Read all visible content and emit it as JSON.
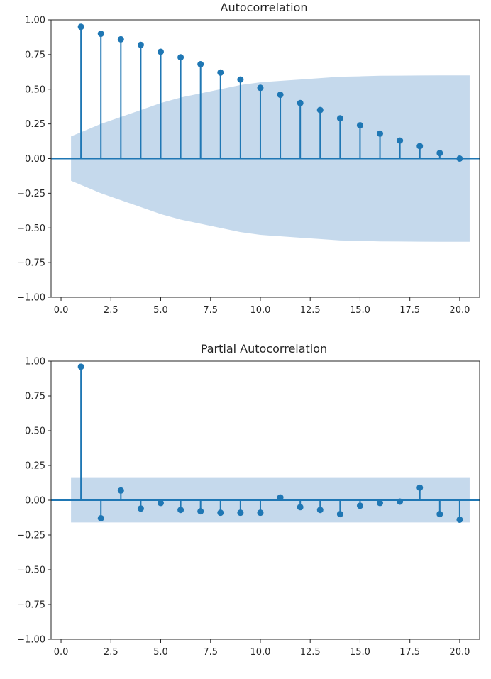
{
  "chart_data": [
    {
      "type": "stem",
      "title": "Autocorrelation",
      "xlabel": "",
      "ylabel": "",
      "xlim": [
        -0.5,
        21.0
      ],
      "ylim": [
        -1.0,
        1.0
      ],
      "x_ticks": [
        0.0,
        2.5,
        5.0,
        7.5,
        10.0,
        12.5,
        15.0,
        17.5,
        20.0
      ],
      "x_tick_labels": [
        "0.0",
        "2.5",
        "5.0",
        "7.5",
        "10.0",
        "12.5",
        "15.0",
        "17.5",
        "20.0"
      ],
      "y_ticks": [
        1.0,
        0.75,
        0.5,
        0.25,
        0.0,
        -0.25,
        -0.5,
        -0.75,
        -1.0
      ],
      "y_tick_labels": [
        "1.00",
        "0.75",
        "0.50",
        "0.25",
        "0.00",
        "−0.25",
        "−0.50",
        "−0.75",
        "−1.00"
      ],
      "x": [
        1,
        2,
        3,
        4,
        5,
        6,
        7,
        8,
        9,
        10,
        11,
        12,
        13,
        14,
        15,
        16,
        17,
        18,
        19,
        20
      ],
      "values": [
        0.95,
        0.9,
        0.86,
        0.82,
        0.77,
        0.73,
        0.68,
        0.62,
        0.57,
        0.51,
        0.46,
        0.4,
        0.35,
        0.29,
        0.24,
        0.18,
        0.13,
        0.09,
        0.04,
        0.0
      ],
      "confidence_band": {
        "x": [
          0.5,
          1,
          2,
          3,
          4,
          5,
          6,
          7,
          8,
          9,
          10,
          11,
          12,
          13,
          14,
          15,
          16,
          17,
          18,
          19,
          20,
          20.5
        ],
        "upper": [
          0.16,
          0.19,
          0.25,
          0.3,
          0.35,
          0.4,
          0.44,
          0.47,
          0.5,
          0.53,
          0.55,
          0.56,
          0.57,
          0.58,
          0.59,
          0.593,
          0.597,
          0.598,
          0.599,
          0.6,
          0.6,
          0.6
        ]
      },
      "grid": false,
      "colors": {
        "marker": "#1f77b4",
        "band": "#c5d9ec",
        "axes": "#262626"
      }
    },
    {
      "type": "stem",
      "title": "Partial Autocorrelation",
      "xlabel": "",
      "ylabel": "",
      "xlim": [
        -0.5,
        21.0
      ],
      "ylim": [
        -1.0,
        1.0
      ],
      "x_ticks": [
        0.0,
        2.5,
        5.0,
        7.5,
        10.0,
        12.5,
        15.0,
        17.5,
        20.0
      ],
      "x_tick_labels": [
        "0.0",
        "2.5",
        "5.0",
        "7.5",
        "10.0",
        "12.5",
        "15.0",
        "17.5",
        "20.0"
      ],
      "y_ticks": [
        1.0,
        0.75,
        0.5,
        0.25,
        0.0,
        -0.25,
        -0.5,
        -0.75,
        -1.0
      ],
      "y_tick_labels": [
        "1.00",
        "0.75",
        "0.50",
        "0.25",
        "0.00",
        "−0.25",
        "−0.50",
        "−0.75",
        "−1.00"
      ],
      "x": [
        1,
        2,
        3,
        4,
        5,
        6,
        7,
        8,
        9,
        10,
        11,
        12,
        13,
        14,
        15,
        16,
        17,
        18,
        19,
        20
      ],
      "values": [
        0.96,
        -0.13,
        0.07,
        -0.06,
        -0.02,
        -0.07,
        -0.08,
        -0.09,
        -0.09,
        -0.09,
        0.02,
        -0.05,
        -0.07,
        -0.1,
        -0.04,
        -0.02,
        -0.01,
        0.09,
        -0.1,
        -0.14
      ],
      "confidence_band": {
        "x": [
          0.5,
          20.5
        ],
        "upper": [
          0.16,
          0.16
        ]
      },
      "grid": false,
      "colors": {
        "marker": "#1f77b4",
        "band": "#c5d9ec",
        "axes": "#262626"
      }
    }
  ]
}
